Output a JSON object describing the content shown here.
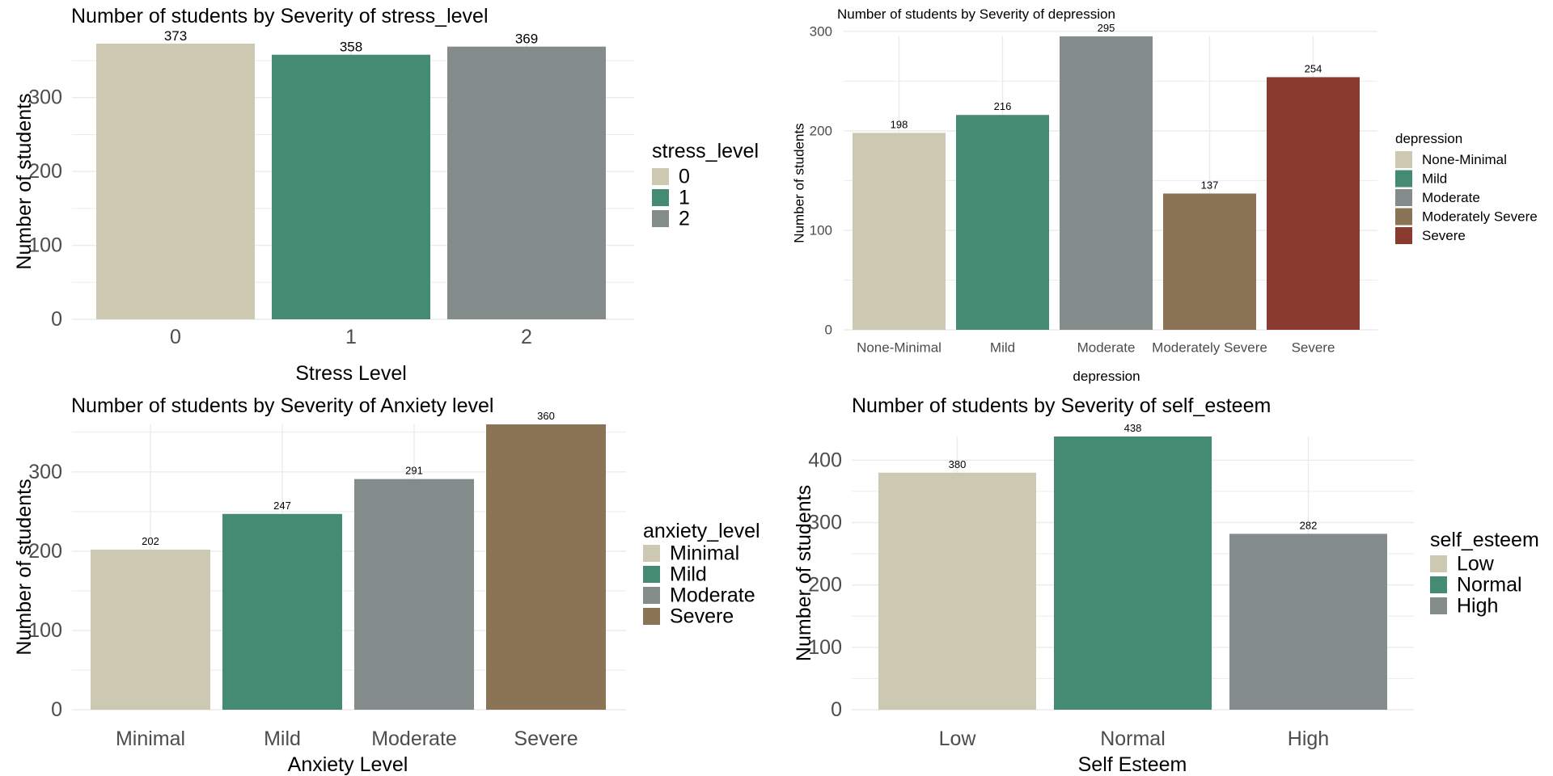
{
  "colors": {
    "palette": [
      "#cdc8b1",
      "#458b74",
      "#838b8b",
      "#8b7355",
      "#8b3a2f"
    ],
    "grid": "#ebebeb",
    "axis_text": "#4d4d4d",
    "text": "#000000"
  },
  "chart_data": [
    {
      "type": "bar",
      "title": "Number of students by Severity of stress_level",
      "xlabel": "Stress Level",
      "ylabel": "Number of students",
      "categories": [
        "0",
        "1",
        "2"
      ],
      "values": [
        373,
        358,
        369
      ],
      "ylim": [
        0,
        373
      ],
      "yticks": [
        0,
        100,
        200,
        300
      ],
      "legend": {
        "title": "stress_level",
        "entries": [
          "0",
          "1",
          "2"
        ],
        "position": "right"
      },
      "grid": true
    },
    {
      "type": "bar",
      "title": "Number of students by Severity of depression",
      "xlabel": "depression",
      "ylabel": "Number of students",
      "categories": [
        "None-Minimal",
        "Mild",
        "Moderate",
        "Moderately Severe",
        "Severe"
      ],
      "values": [
        198,
        216,
        295,
        137,
        254
      ],
      "ylim": [
        0,
        295
      ],
      "yticks": [
        0,
        100,
        200,
        300
      ],
      "legend": {
        "title": "depression",
        "entries": [
          "None-Minimal",
          "Mild",
          "Moderate",
          "Moderately Severe",
          "Severe"
        ],
        "position": "right"
      },
      "grid": true
    },
    {
      "type": "bar",
      "title": "Number of students by Severity of Anxiety level",
      "xlabel": "Anxiety Level",
      "ylabel": "Number of students",
      "categories": [
        "Minimal",
        "Mild",
        "Moderate",
        "Severe"
      ],
      "values": [
        202,
        247,
        291,
        360
      ],
      "ylim": [
        0,
        360
      ],
      "yticks": [
        0,
        100,
        200,
        300
      ],
      "legend": {
        "title": "anxiety_level",
        "entries": [
          "Minimal",
          "Mild",
          "Moderate",
          "Severe"
        ],
        "position": "right"
      },
      "grid": true
    },
    {
      "type": "bar",
      "title": "Number of students by Severity of self_esteem",
      "xlabel": "Self Esteem",
      "ylabel": "Number of students",
      "categories": [
        "Low",
        "Normal",
        "High"
      ],
      "values": [
        380,
        438,
        282
      ],
      "ylim": [
        0,
        438
      ],
      "yticks": [
        0,
        100,
        200,
        300,
        400
      ],
      "legend": {
        "title": "self_esteem",
        "entries": [
          "Low",
          "Normal",
          "High"
        ],
        "position": "right"
      },
      "grid": true
    }
  ]
}
